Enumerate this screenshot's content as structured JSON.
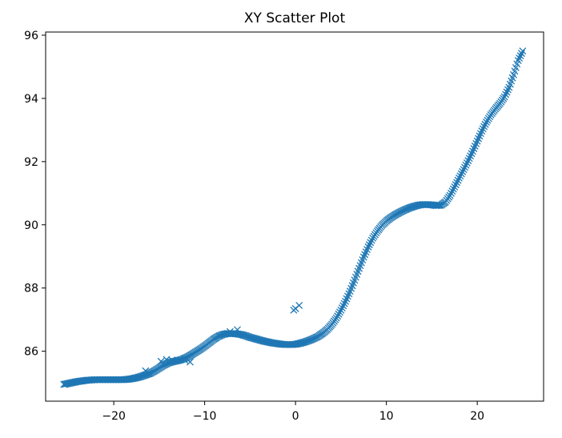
{
  "chart_data": {
    "type": "scatter",
    "title": "XY Scatter Plot",
    "xlabel": "",
    "ylabel": "",
    "xlim": [
      -27.5,
      27.3
    ],
    "ylim": [
      84.42,
      96.1
    ],
    "x_ticks": [
      -20,
      -10,
      0,
      10,
      20
    ],
    "x_tick_labels": [
      "−20",
      "−10",
      "0",
      "10",
      "20"
    ],
    "y_ticks": [
      86,
      88,
      90,
      92,
      94,
      96
    ],
    "y_tick_labels": [
      "86",
      "88",
      "90",
      "92",
      "94",
      "96"
    ],
    "grid": false,
    "legend": "none",
    "marker": "x",
    "color": "#1f77b4",
    "series": [
      {
        "x": [
          -25.5,
          -25.0,
          -24.5,
          -24.0,
          -23.5,
          -23.0,
          -22.5,
          -22.0,
          -21.5,
          -21.0,
          -20.5,
          -20.0,
          -19.5,
          -19.0,
          -18.5,
          -18.0,
          -17.5,
          -17.0,
          -16.5,
          -16.0,
          -15.5,
          -15.0,
          -14.5,
          -14.0,
          -13.5,
          -13.0,
          -12.5,
          -12.0,
          -11.5,
          -11.0,
          -10.5,
          -10.0,
          -9.5,
          -9.0,
          -8.5,
          -8.0,
          -7.5,
          -7.0,
          -6.5,
          -6.0,
          -5.5,
          -5.0,
          -4.5,
          -4.0,
          -3.5,
          -3.0,
          -2.5,
          -2.0,
          -1.5,
          -1.0,
          -0.5,
          0.0,
          0.5,
          1.0,
          1.5,
          2.0,
          2.5,
          3.0,
          3.5,
          4.0,
          4.5,
          5.0,
          5.5,
          6.0,
          6.5,
          7.0,
          7.5,
          8.0,
          8.5,
          9.0,
          9.5,
          10.0,
          10.5,
          11.0,
          11.5,
          12.0,
          12.5,
          13.0,
          13.5,
          14.0,
          14.5,
          15.0,
          15.5,
          16.0,
          16.5,
          17.0,
          17.5,
          18.0,
          18.5,
          19.0,
          19.5,
          20.0,
          20.5,
          21.0,
          21.5,
          22.0,
          22.5,
          23.0,
          23.5,
          24.0,
          24.5,
          25.0,
          -16.5,
          -14.8,
          -14.2,
          -13.6,
          -12.2,
          -11.6,
          -7.2,
          -6.4,
          0.0,
          0.4,
          -0.2
        ],
        "y": [
          84.95,
          84.98,
          85.01,
          85.04,
          85.06,
          85.08,
          85.09,
          85.1,
          85.1,
          85.1,
          85.1,
          85.1,
          85.1,
          85.1,
          85.11,
          85.13,
          85.16,
          85.2,
          85.25,
          85.3,
          85.38,
          85.47,
          85.56,
          85.63,
          85.67,
          85.7,
          85.74,
          85.8,
          85.88,
          85.97,
          86.06,
          86.16,
          86.27,
          86.38,
          86.47,
          86.53,
          86.56,
          86.56,
          86.55,
          86.53,
          86.49,
          86.44,
          86.4,
          86.36,
          86.32,
          86.29,
          86.26,
          86.24,
          86.22,
          86.21,
          86.21,
          86.22,
          86.25,
          86.29,
          86.34,
          86.4,
          86.47,
          86.57,
          86.69,
          86.85,
          87.05,
          87.3,
          87.58,
          87.9,
          88.25,
          88.62,
          88.98,
          89.3,
          89.58,
          89.8,
          89.98,
          90.12,
          90.23,
          90.32,
          90.4,
          90.47,
          90.53,
          90.58,
          90.62,
          90.64,
          90.64,
          90.63,
          90.61,
          90.62,
          90.72,
          90.93,
          91.2,
          91.48,
          91.75,
          92.03,
          92.33,
          92.65,
          92.97,
          93.25,
          93.48,
          93.67,
          93.84,
          94.05,
          94.35,
          94.75,
          95.2,
          95.5,
          85.38,
          85.68,
          85.74,
          85.72,
          85.72,
          85.66,
          86.62,
          86.68,
          87.35,
          87.45,
          87.3
        ]
      }
    ]
  }
}
